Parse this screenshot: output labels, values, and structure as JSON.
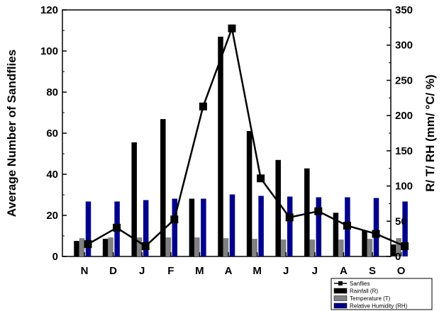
{
  "chart_data": {
    "type": "bar",
    "categories": [
      "N",
      "D",
      "J",
      "F",
      "M",
      "A",
      "M",
      "J",
      "J",
      "A",
      "S",
      "O"
    ],
    "ylabel": "Average Number of Sandflies",
    "y2label": "R/ T/ RH (mm/ °C/ %)",
    "ylim": [
      0,
      120
    ],
    "yticks": [
      0,
      20,
      40,
      60,
      80,
      100,
      120
    ],
    "y2lim": [
      0,
      350
    ],
    "y2ticks": [
      0,
      50,
      100,
      150,
      200,
      250,
      300,
      350
    ],
    "legend_position": "bottom-right",
    "series": [
      {
        "name": "Sanflies",
        "type": "line",
        "axis": "left",
        "color": "#000000",
        "values": [
          6,
          14,
          5,
          18,
          73,
          111,
          38,
          19,
          22,
          15,
          11,
          5
        ]
      },
      {
        "name": "Rainfall (R)",
        "type": "bar",
        "axis": "right",
        "color": "#000000",
        "values": [
          22,
          25,
          162,
          195,
          82,
          312,
          178,
          137,
          125,
          62,
          37,
          17
        ]
      },
      {
        "name": "Temperature (T)",
        "type": "bar",
        "axis": "right",
        "color": "#808080",
        "values": [
          26,
          27,
          27,
          27,
          27,
          26,
          25,
          24,
          24,
          24,
          25,
          26
        ]
      },
      {
        "name": "Relative Humidity (RH)",
        "type": "bar",
        "axis": "right",
        "color": "#00008b",
        "values": [
          78,
          78,
          80,
          82,
          82,
          88,
          86,
          85,
          84,
          84,
          83,
          78
        ]
      }
    ]
  }
}
